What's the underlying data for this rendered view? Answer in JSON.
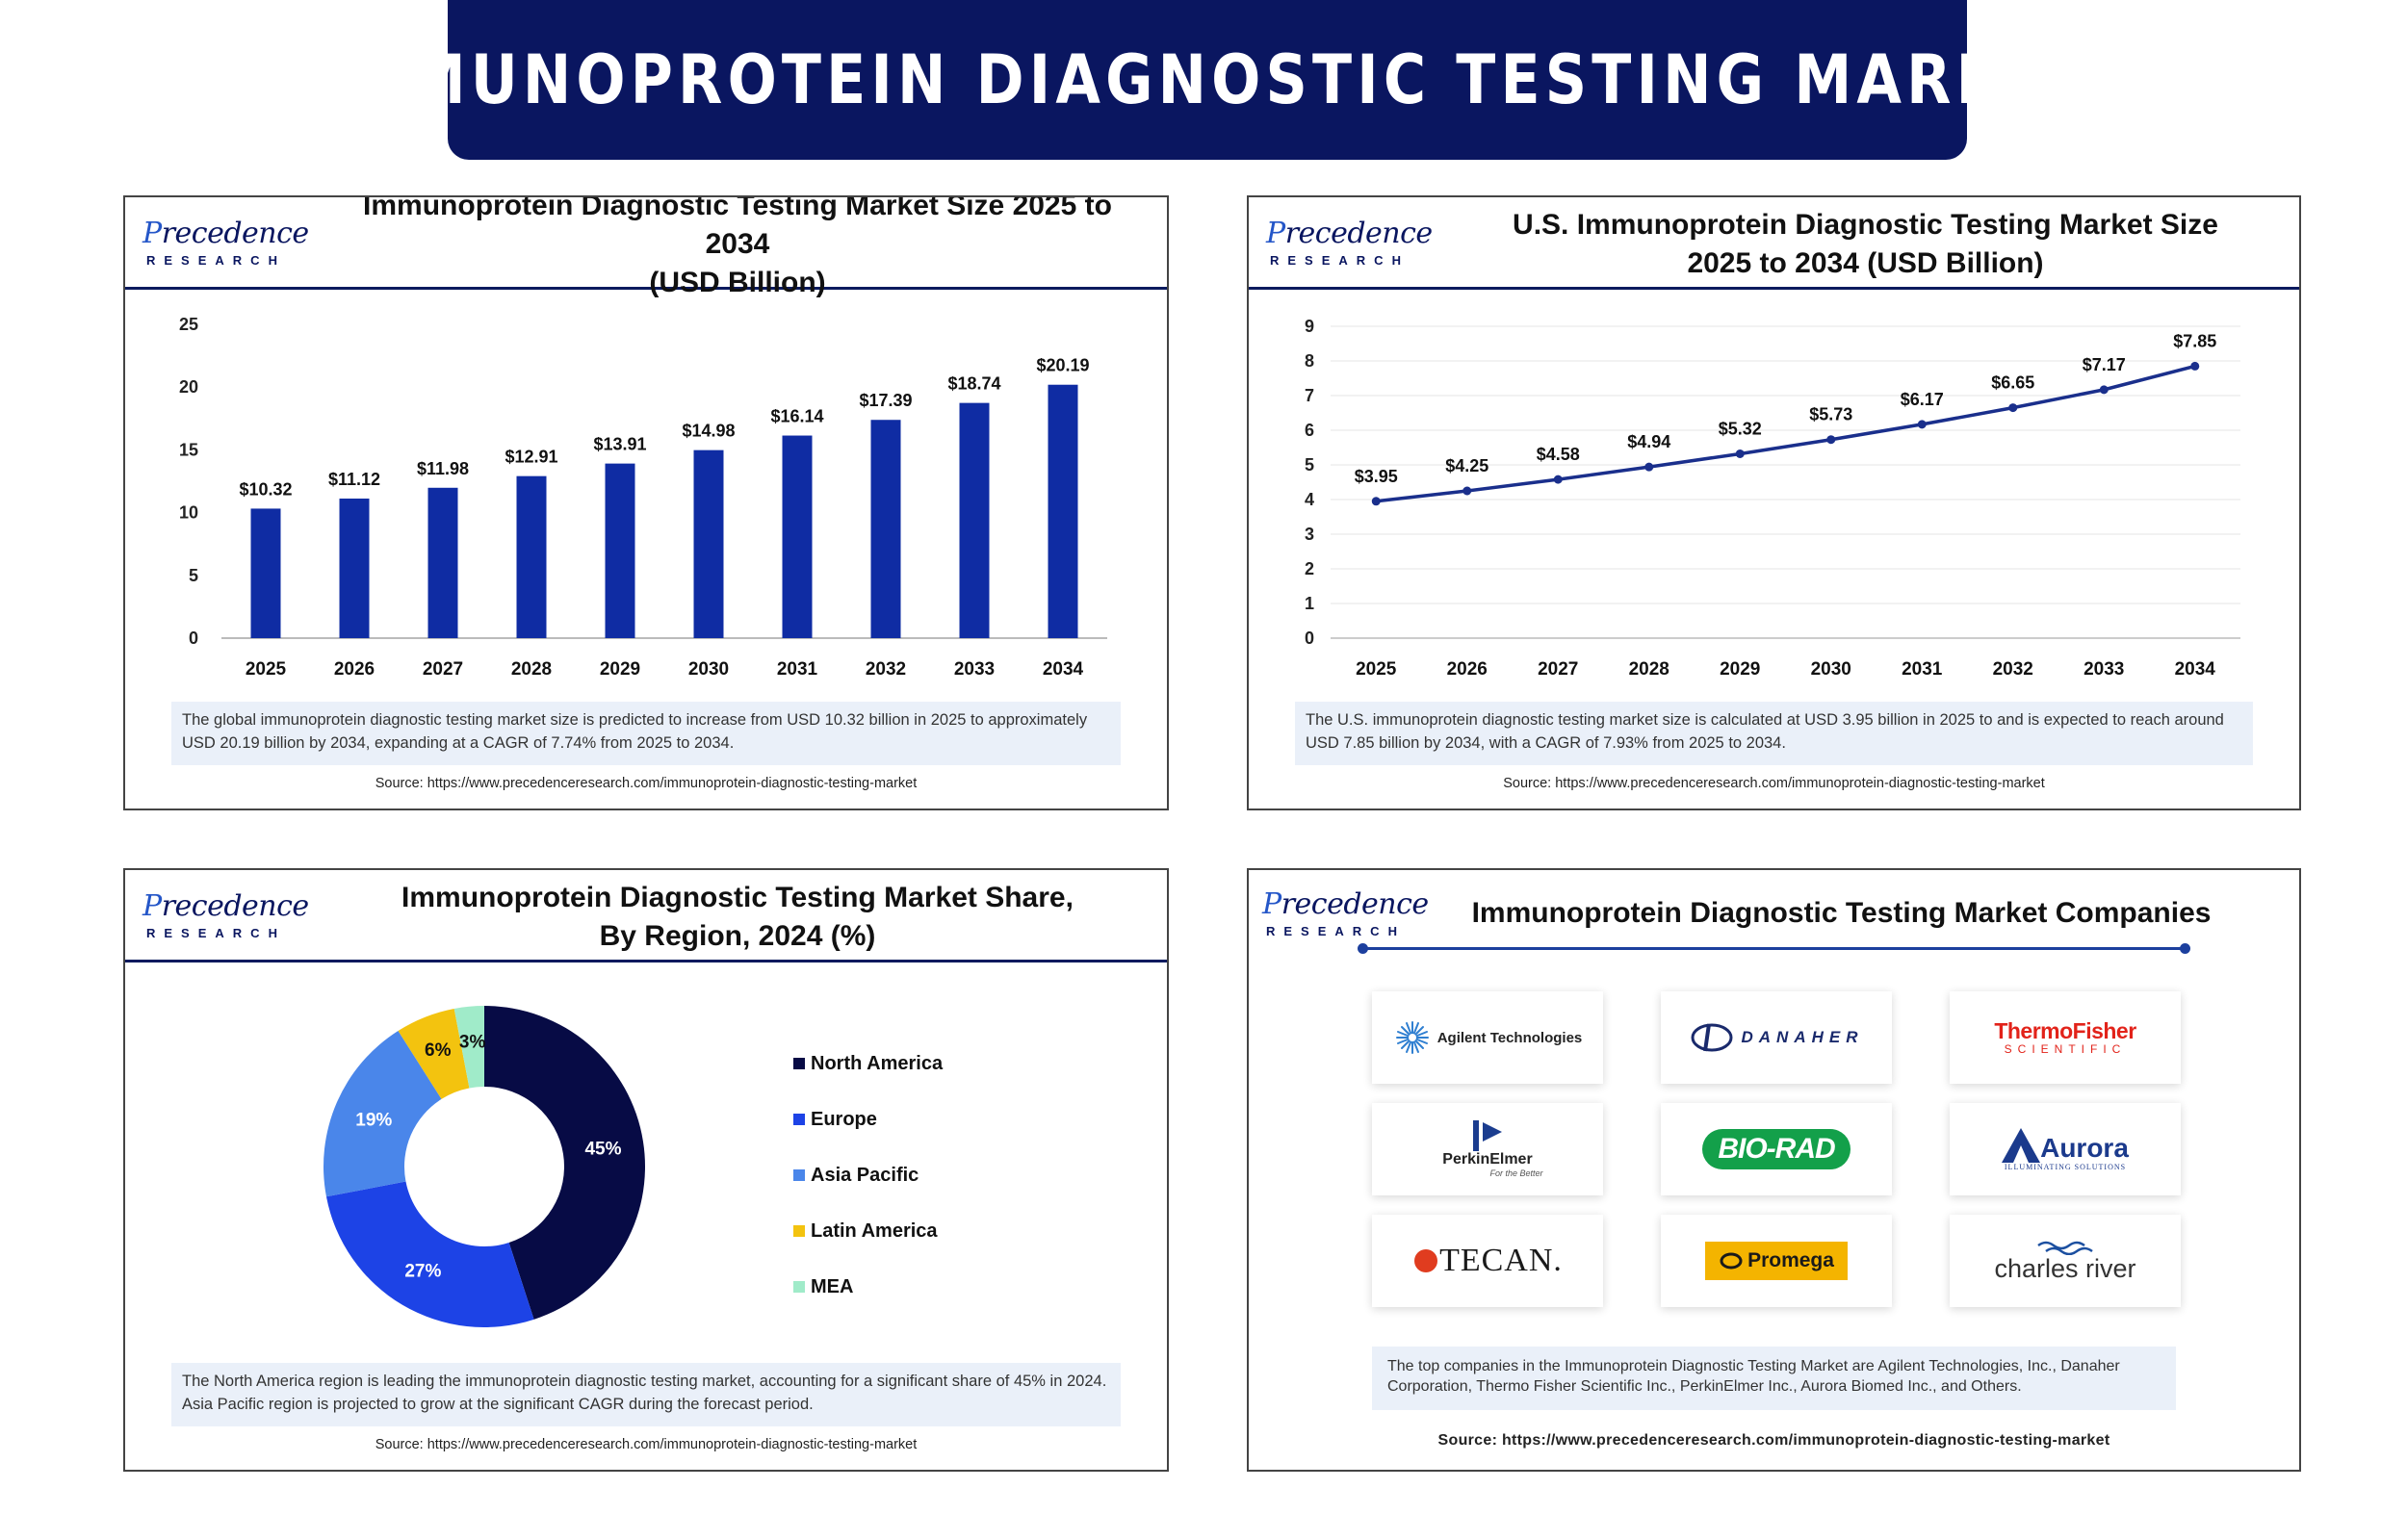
{
  "header": {
    "title": "IMMUNOPROTEIN DIAGNOSTIC TESTING MARKET"
  },
  "logo": {
    "word": "Precedence",
    "sub": "RESEARCH"
  },
  "colors": {
    "banner": "#0a1660",
    "bar": "#0f2ca3",
    "line": "#1a2f8c",
    "north_america": "#070b45",
    "europe": "#1d43e6",
    "asia_pacific": "#4a86ea",
    "latin_america": "#f3c30f",
    "mea": "#a0ebc9"
  },
  "panels": {
    "global": {
      "title_line1": "Immunoprotein Diagnostic Testing Market Size 2025 to 2034",
      "title_line2": "(USD Billion)",
      "note": "The global immunoprotein diagnostic testing market size is predicted to increase from USD 10.32 billion in 2025 to approximately USD 20.19 billion by 2034, expanding at a CAGR of 7.74% from 2025 to 2034.",
      "source": "Source: https://www.precedenceresearch.com/immunoprotein-diagnostic-testing-market"
    },
    "us": {
      "title_line1": "U.S. Immunoprotein Diagnostic Testing Market Size",
      "title_line2": "2025 to 2034 (USD Billion)",
      "note": "The U.S. immunoprotein diagnostic testing market size is calculated at USD 3.95 billion in 2025 to and is expected to reach around USD 7.85 billion by 2034, with a CAGR of 7.93% from 2025 to 2034.",
      "source": "Source: https://www.precedenceresearch.com/immunoprotein-diagnostic-testing-market"
    },
    "region": {
      "title_line1": "Immunoprotein Diagnostic Testing Market Share,",
      "title_line2": "By Region, 2024 (%)",
      "note": "The North America region is leading the immunoprotein diagnostic testing market, accounting for a significant share of 45% in 2024. Asia Pacific region is projected to grow at the significant CAGR during the forecast period.",
      "source": "Source: https://www.precedenceresearch.com/immunoprotein-diagnostic-testing-market"
    },
    "companies": {
      "title": "Immunoprotein Diagnostic Testing Market Companies",
      "note": "The top companies in the Immunoprotein Diagnostic Testing Market are Agilent Technologies, Inc., Danaher Corporation, Thermo Fisher Scientific Inc., PerkinElmer Inc., Aurora Biomed Inc., and Others.",
      "source": "Source: https://www.precedenceresearch.com/immunoprotein-diagnostic-testing-market",
      "logos": [
        {
          "name": "Agilent Technologies",
          "icon": "agilent-spark-icon"
        },
        {
          "name": "DANAHER",
          "icon": "danaher-d-icon"
        },
        {
          "name": "ThermoFisher",
          "sub": "SCIENTIFIC"
        },
        {
          "name": "PerkinElmer",
          "sub": "For the Better",
          "icon": "perkinelmer-flag-icon"
        },
        {
          "name": "BIO-RAD"
        },
        {
          "name": "Aurora",
          "sub": "ILLUMINATING SOLUTIONS",
          "icon": "aurora-a-icon"
        },
        {
          "name": "TECAN."
        },
        {
          "name": "Promega",
          "icon": "promega-ring-icon"
        },
        {
          "name": "charles river",
          "icon": "wave-icon"
        }
      ]
    }
  },
  "chart_data": [
    {
      "type": "bar",
      "categories": [
        "2025",
        "2026",
        "2027",
        "2028",
        "2029",
        "2030",
        "2031",
        "2032",
        "2033",
        "2034"
      ],
      "values": [
        10.32,
        11.12,
        11.98,
        12.91,
        13.91,
        14.98,
        16.14,
        17.39,
        18.74,
        20.19
      ],
      "labels": [
        "$10.32",
        "$11.12",
        "$11.98",
        "$12.91",
        "$13.91",
        "$14.98",
        "$16.14",
        "$17.39",
        "$18.74",
        "$20.19"
      ],
      "yticks": [
        "0",
        "5",
        "10",
        "15",
        "20",
        "25"
      ],
      "ylim": [
        0,
        25
      ],
      "grid": false
    },
    {
      "type": "line",
      "categories": [
        "2025",
        "2026",
        "2027",
        "2028",
        "2029",
        "2030",
        "2031",
        "2032",
        "2033",
        "2034"
      ],
      "values": [
        3.95,
        4.25,
        4.58,
        4.94,
        5.32,
        5.73,
        6.17,
        6.65,
        7.17,
        7.85
      ],
      "labels": [
        "$3.95",
        "$4.25",
        "$4.58",
        "$4.94",
        "$5.32",
        "$5.73",
        "$6.17",
        "$6.65",
        "$7.17",
        "$7.85"
      ],
      "yticks": [
        "0",
        "1",
        "2",
        "3",
        "4",
        "5",
        "6",
        "7",
        "8",
        "9"
      ],
      "ylim": [
        0,
        9
      ],
      "grid": true
    },
    {
      "type": "pie",
      "categories": [
        "North America",
        "Europe",
        "Asia Pacific",
        "Latin America",
        "MEA"
      ],
      "values": [
        45,
        27,
        19,
        6,
        3
      ],
      "labels": [
        "45%",
        "27%",
        "19%",
        "6%",
        "3%"
      ],
      "legend": "right"
    }
  ]
}
